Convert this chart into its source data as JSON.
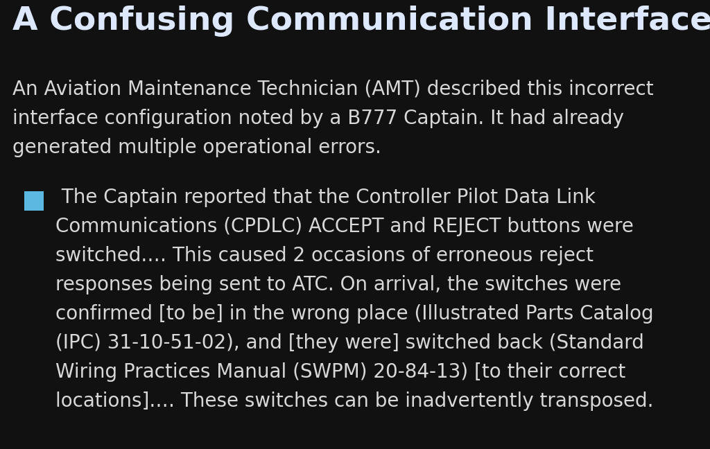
{
  "title": "A Confusing Communication Interface",
  "background_color": "#111111",
  "title_color": "#dde8ff",
  "body_color": "#d8d8d8",
  "bullet_color": "#5bb8e0",
  "title_fontsize": 34,
  "body_fontsize": 20,
  "intro_lines": [
    "An Aviation Maintenance Technician (AMT) described this incorrect",
    "interface configuration noted by a B777 Captain. It had already",
    "generated multiple operational errors."
  ],
  "bullet_lines": [
    " The Captain reported that the Controller Pilot Data Link",
    "Communications (CPDLC) ACCEPT and REJECT buttons were",
    "switched.… This caused 2 occasions of erroneous reject",
    "responses being sent to ATC. On arrival, the switches were",
    "confirmed [to be] in the wrong place (Illustrated Parts Catalog",
    "(IPC) 31-10-51-02), and [they were] switched back (Standard",
    "Wiring Practices Manual (SWPM) 20-84-13) [to their correct",
    "locations].… These switches can be inadvertently transposed."
  ],
  "fig_width": 10.24,
  "fig_height": 6.48,
  "dpi": 100
}
